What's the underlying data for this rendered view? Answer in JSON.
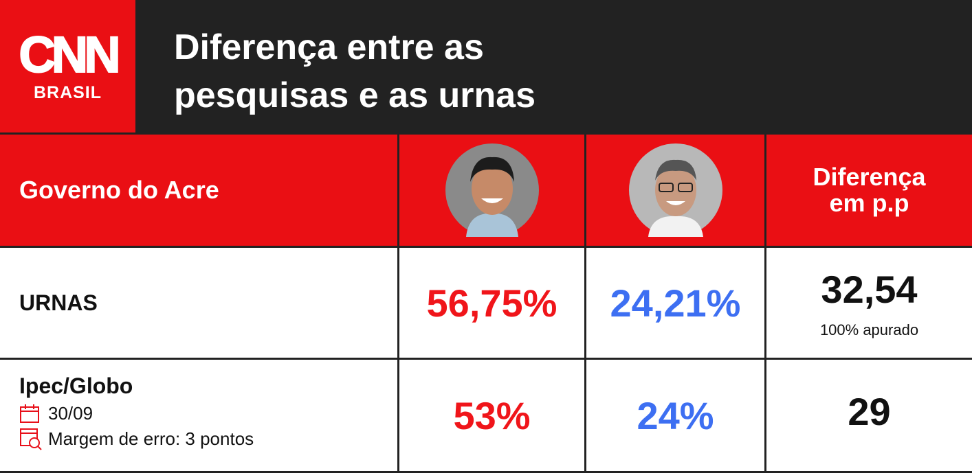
{
  "header": {
    "logo": {
      "name": "CNN",
      "sub": "BRASIL"
    },
    "title": "Diferença entre as pesquisas e as urnas"
  },
  "table": {
    "header": {
      "label": "Governo do Acre",
      "difference": "Diferença em p.p"
    },
    "rows": [
      {
        "label": "URNAS",
        "candidate1": "56,75%",
        "candidate2": "24,21%",
        "difference": "32,54",
        "note": "100% apurado"
      },
      {
        "label": "Ipec/Globo",
        "date": "30/09",
        "margin": "Margem de erro: 3 pontos",
        "candidate1": "53%",
        "candidate2": "24%",
        "difference": "29"
      }
    ]
  }
}
